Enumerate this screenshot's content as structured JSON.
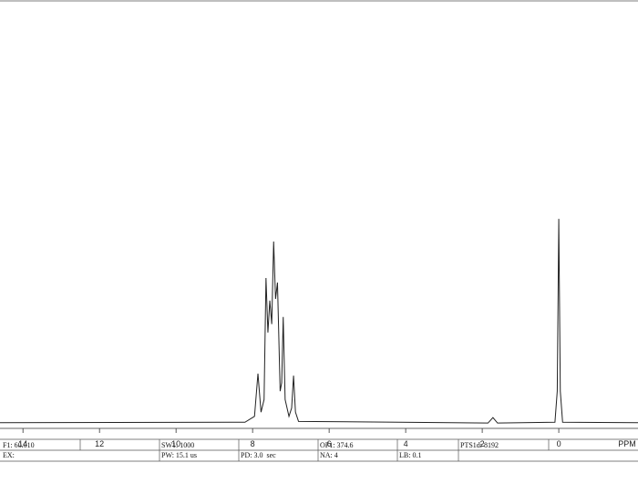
{
  "chart_data": {
    "type": "line",
    "x": [
      14.6,
      8.2,
      7.95,
      7.86,
      7.78,
      7.7,
      7.65,
      7.6,
      7.55,
      7.5,
      7.45,
      7.4,
      7.35,
      7.28,
      7.24,
      7.2,
      7.15,
      7.05,
      6.98,
      6.93,
      6.88,
      6.8,
      1.85,
      1.72,
      1.6,
      0.1,
      0.04,
      0.0,
      -0.04,
      -0.1,
      -2.07
    ],
    "values": [
      0.5,
      0.6,
      2,
      12.2,
      3,
      6,
      35,
      22,
      29.6,
      24,
      43.7,
      30,
      33.9,
      8,
      10,
      25.7,
      6,
      2,
      4,
      11.7,
      3,
      0.8,
      0.4,
      1.7,
      0.4,
      0.6,
      8,
      49.1,
      8,
      0.6,
      0.5
    ],
    "color": "#222222",
    "xlim": [
      14.6,
      -2.07
    ],
    "ylim": [
      0,
      100
    ],
    "xticks": [
      14,
      12,
      10,
      8,
      6,
      4,
      2,
      0
    ],
    "x_label": "PPM"
  },
  "parameters": {
    "row1": [
      "F1: 60.010",
      "SW1: 1000",
      "OF1: 374.6",
      "PTS1d: 8192"
    ],
    "row2": [
      "EX:",
      "PW: 15.1 us",
      "PD: 3.0  sec",
      "NA: 4",
      "LB: 0.1"
    ]
  }
}
